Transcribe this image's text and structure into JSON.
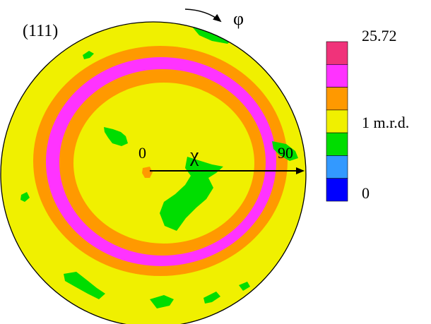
{
  "figure": {
    "pole_figure_label": "(111)",
    "azimuth_symbol": "φ",
    "tilt_symbol": "χ",
    "center_tick": "0",
    "edge_tick": "90"
  },
  "colorbar": {
    "max_label": "25.72",
    "mid_label": "1 m.r.d.",
    "min_label": "0",
    "levels_top_to_bottom": [
      "#f0337a",
      "#ff33ff",
      "#ff9900",
      "#f0f000",
      "#00dd00",
      "#3399ff",
      "#0000ff"
    ]
  },
  "colors": {
    "background": "#f0f000",
    "ring": "#ff9900",
    "ring_peak": "#ff33ff",
    "islands": "#00dd00",
    "center_spot": "#ff9900",
    "outline": "#000000"
  }
}
